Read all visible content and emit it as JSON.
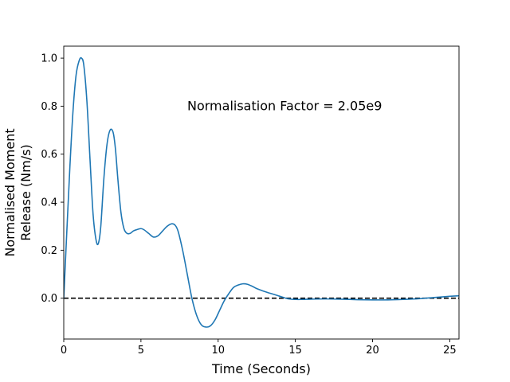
{
  "chart_data": {
    "type": "line",
    "title": "",
    "xlabel": "Time (Seconds)",
    "ylabel_lines": [
      "Normalised Moment",
      "Release (Nm/s)"
    ],
    "xlim": [
      0,
      25.6
    ],
    "ylim": [
      -0.17,
      1.05
    ],
    "xticks": [
      0,
      5,
      10,
      15,
      20,
      25
    ],
    "yticks": [
      0.0,
      0.2,
      0.4,
      0.6,
      0.8,
      1.0
    ],
    "ytick_labels": [
      "0.0",
      "0.2",
      "0.4",
      "0.6",
      "0.8",
      "1.0"
    ],
    "xtick_labels": [
      "0",
      "5",
      "10",
      "15",
      "20",
      "25"
    ],
    "grid": false,
    "annotation": {
      "text": "Normalisation Factor = 2.05e9",
      "x": 8.0,
      "y": 0.8
    },
    "reference_line": {
      "y": 0.0,
      "style": "dashed",
      "color": "#000000"
    },
    "series": [
      {
        "color": "#1f77b4",
        "x": [
          0.0,
          0.2,
          0.4,
          0.6,
          0.8,
          1.0,
          1.15,
          1.3,
          1.5,
          1.7,
          1.9,
          2.1,
          2.25,
          2.4,
          2.6,
          2.8,
          3.0,
          3.2,
          3.35,
          3.5,
          3.7,
          3.9,
          4.1,
          4.3,
          4.5,
          4.7,
          5.0,
          5.2,
          5.5,
          5.8,
          6.1,
          6.4,
          6.7,
          7.0,
          7.2,
          7.4,
          7.7,
          8.0,
          8.3,
          8.6,
          8.9,
          9.2,
          9.5,
          9.8,
          10.1,
          10.4,
          10.7,
          11.0,
          11.3,
          11.6,
          11.9,
          12.2,
          12.5,
          13.0,
          13.5,
          14.0,
          14.5,
          15.0,
          15.5,
          16.0,
          17.0,
          18.0,
          19.0,
          20.0,
          21.0,
          22.0,
          23.0,
          24.0,
          25.0,
          25.6
        ],
        "y": [
          0.0,
          0.28,
          0.55,
          0.78,
          0.93,
          0.99,
          1.0,
          0.97,
          0.82,
          0.58,
          0.35,
          0.24,
          0.23,
          0.3,
          0.5,
          0.64,
          0.7,
          0.69,
          0.62,
          0.5,
          0.36,
          0.29,
          0.27,
          0.27,
          0.28,
          0.285,
          0.29,
          0.285,
          0.27,
          0.255,
          0.26,
          0.28,
          0.3,
          0.31,
          0.305,
          0.28,
          0.2,
          0.1,
          0.0,
          -0.07,
          -0.11,
          -0.12,
          -0.115,
          -0.09,
          -0.05,
          -0.01,
          0.02,
          0.045,
          0.055,
          0.06,
          0.058,
          0.05,
          0.04,
          0.028,
          0.018,
          0.008,
          -0.002,
          -0.005,
          -0.005,
          -0.004,
          -0.003,
          -0.004,
          -0.006,
          -0.007,
          -0.007,
          -0.005,
          -0.002,
          0.003,
          0.008,
          0.01
        ]
      }
    ]
  }
}
